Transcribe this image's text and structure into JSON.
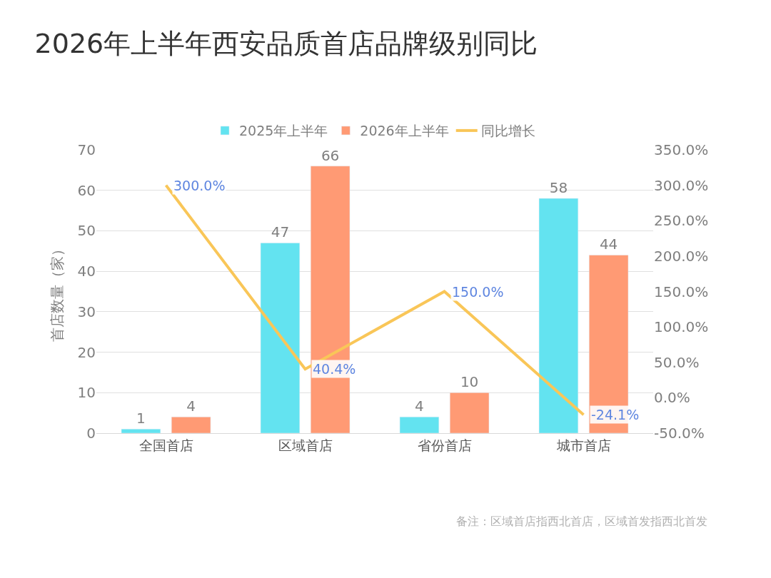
{
  "chart_data": {
    "type": "bar",
    "title": "2026年上半年西安品质首店品牌级别同比",
    "ylabel": "首店数量（家）",
    "categories": [
      "全国首店",
      "区域首店",
      "省份首店",
      "城市首店"
    ],
    "series": [
      {
        "name": "2025年上半年",
        "color": "#63e3f0",
        "values": [
          1,
          47,
          4,
          58
        ]
      },
      {
        "name": "2026年上半年",
        "color": "#ff9a74",
        "values": [
          4,
          66,
          10,
          44
        ]
      },
      {
        "name": "同比增长",
        "type": "line",
        "axis": "y2",
        "color": "#f9c658",
        "values": [
          300,
          40.4,
          150,
          -24.1
        ],
        "value_labels": [
          "300.0%",
          "40.4%",
          "150.0%",
          "-24.1%"
        ]
      }
    ],
    "data_labels": true,
    "ylim": [
      0,
      70
    ],
    "yticks": [
      0,
      10,
      20,
      30,
      40,
      50,
      60,
      70
    ],
    "y2lim": [
      -50,
      350
    ],
    "y2ticks": [
      {
        "value": -50,
        "label": "-50.0%"
      },
      {
        "value": 0,
        "label": "0.0%"
      },
      {
        "value": 50,
        "label": "50.0%"
      },
      {
        "value": 100,
        "label": "100.0%"
      },
      {
        "value": 150,
        "label": "150.0%"
      },
      {
        "value": 200,
        "label": "200.0%"
      },
      {
        "value": 250,
        "label": "250.0%"
      },
      {
        "value": 300,
        "label": "300.0%"
      },
      {
        "value": 350,
        "label": "350.0%"
      }
    ],
    "grid": "y",
    "legend": "top",
    "annotations": [
      "备注：区域首店指西北首店，区域首发指西北首发"
    ]
  }
}
